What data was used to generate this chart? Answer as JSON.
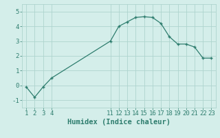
{
  "x": [
    1,
    2,
    3,
    4,
    11,
    12,
    13,
    14,
    15,
    16,
    17,
    18,
    19,
    20,
    21,
    22,
    23
  ],
  "y": [
    -0.1,
    -0.8,
    -0.1,
    0.5,
    3.0,
    4.0,
    4.3,
    4.6,
    4.65,
    4.6,
    4.2,
    3.3,
    2.8,
    2.8,
    2.6,
    1.85,
    1.85
  ],
  "line_color": "#2e7d6e",
  "marker": "+",
  "marker_color": "#2e7d6e",
  "bg_color": "#d4eeea",
  "grid_color": "#aed4ce",
  "xlabel": "Humidex (Indice chaleur)",
  "xlim": [
    0.5,
    23.5
  ],
  "ylim": [
    -1.5,
    5.5
  ],
  "yticks": [
    -1,
    0,
    1,
    2,
    3,
    4,
    5
  ],
  "xticks": [
    1,
    2,
    3,
    4,
    11,
    12,
    13,
    14,
    15,
    16,
    17,
    18,
    19,
    20,
    21,
    22,
    23
  ],
  "tick_label_color": "#2e7d6e",
  "xlabel_color": "#2e7d6e",
  "xlabel_fontsize": 7.5,
  "tick_fontsize": 6.5,
  "linewidth": 0.9,
  "markersize": 3.5,
  "markeredgewidth": 1.0
}
